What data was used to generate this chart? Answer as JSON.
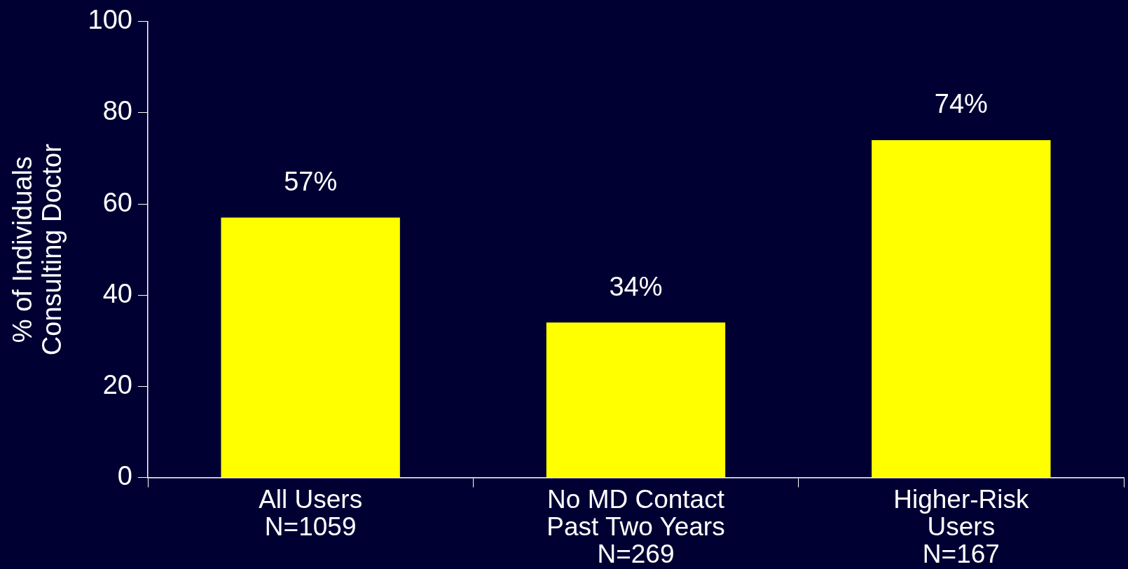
{
  "chart_data": {
    "type": "bar",
    "ylabel": "% of Individuals\nConsulting Doctor",
    "categories": [
      "All Users\nN=1059",
      "No MD Contact\nPast Two Years\nN=269",
      "Higher-Risk\nUsers\nN=167"
    ],
    "values": [
      57,
      34,
      74
    ],
    "color": "#ffff00",
    "value_labels": [
      "57%",
      "34%",
      "74%"
    ],
    "ylim": [
      0,
      100
    ],
    "yticks": [
      0,
      20,
      40,
      60,
      80,
      100
    ],
    "grid": false,
    "legend": false
  }
}
